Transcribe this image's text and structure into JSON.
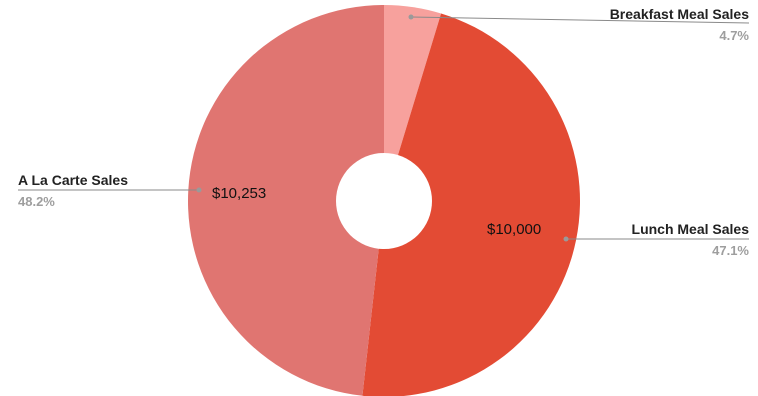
{
  "chart_data": {
    "type": "pie",
    "donut": true,
    "title": "",
    "slices": [
      {
        "label": "Breakfast Meal Sales",
        "percent_label": "4.7%",
        "value": 1000,
        "value_label": "",
        "color": "#f7a19d"
      },
      {
        "label": "Lunch Meal Sales",
        "percent_label": "47.1%",
        "value": 10000,
        "value_label": "$10,000",
        "color": "#e34b34"
      },
      {
        "label": "A La Carte Sales",
        "percent_label": "48.2%",
        "value": 10253,
        "value_label": "$10,253",
        "color": "#e07571"
      }
    ],
    "legend": "outside-labels"
  }
}
